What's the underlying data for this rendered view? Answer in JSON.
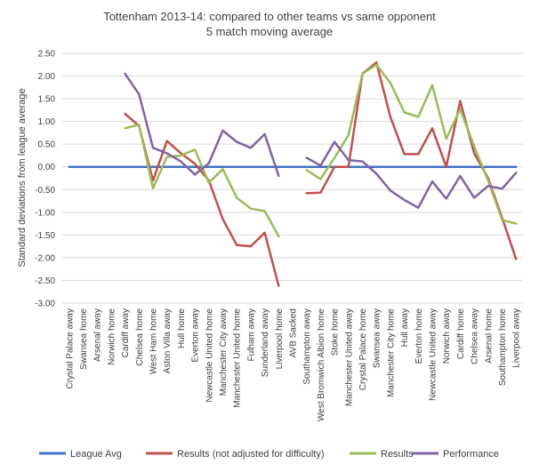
{
  "chart_data": {
    "type": "line",
    "title_line1": "Tottenham 2013-14: compared to other teams vs same opponent",
    "title_line2": "5 match moving average",
    "ylabel": "Standard deviations from league average",
    "xlabel": "",
    "ylim": [
      -3.0,
      2.5
    ],
    "yticks": [
      "2.50",
      "2.00",
      "1.50",
      "1.00",
      "0.50",
      "0.00",
      "-0.50",
      "-1.00",
      "-1.50",
      "-2.00",
      "-2.50",
      "-3.00"
    ],
    "ytick_values": [
      2.5,
      2.0,
      1.5,
      1.0,
      0.5,
      0.0,
      -0.5,
      -1.0,
      -1.5,
      -2.0,
      -2.5,
      -3.0
    ],
    "grid": "horizontal",
    "legend_position": "bottom",
    "categories": [
      "Crystal Palace away",
      "Swansea home",
      "Arsenal away",
      "Norwich home",
      "Cardiff away",
      "Chelsea home",
      "West Ham home",
      "Aston Villa away",
      "Hull home",
      "Everton away",
      "Newcastle United home",
      "Manchester City away",
      "Manchester United home",
      "Fulham away",
      "Sunderland away",
      "Liverpool home",
      "AVB Sacked",
      "Southampton away",
      "West Bromwich Albion home",
      "Stoke home",
      "Manchester United away",
      "Crystal Palace home",
      "Swansea away",
      "Manchester City home",
      "Hull away",
      "Everton home",
      "Newcastle United away",
      "Norwich away",
      "Cardiff home",
      "Chelsea away",
      "Arsenal home",
      "Southampton home",
      "Liverpool away"
    ],
    "series": [
      {
        "name": "League Avg",
        "color": "#4472c4",
        "values": [
          0,
          0,
          0,
          0,
          0,
          0,
          0,
          0,
          0,
          0,
          0,
          0,
          0,
          0,
          0,
          0,
          0,
          0,
          0,
          0,
          0,
          0,
          0,
          0,
          0,
          0,
          0,
          0,
          0,
          0,
          0,
          0,
          0
        ]
      },
      {
        "name": "Results (not adjusted for difficulty)",
        "color": "#c0504d",
        "values": [
          null,
          null,
          null,
          null,
          1.17,
          0.9,
          -0.3,
          0.57,
          0.3,
          0.07,
          -0.3,
          -1.15,
          -1.72,
          -1.75,
          -1.45,
          -2.62,
          null,
          -0.58,
          -0.57,
          0.0,
          0.0,
          2.05,
          2.3,
          1.1,
          0.28,
          0.28,
          0.85,
          0.0,
          1.45,
          0.3,
          -0.25,
          -1.12,
          -2.03
        ]
      },
      {
        "name": "Results",
        "color": "#9bbb59",
        "values": [
          null,
          null,
          null,
          null,
          0.85,
          0.93,
          -0.47,
          0.22,
          0.25,
          0.38,
          -0.35,
          -0.05,
          -0.68,
          -0.92,
          -0.97,
          -1.53,
          null,
          -0.07,
          -0.27,
          0.2,
          0.7,
          2.05,
          2.25,
          1.85,
          1.2,
          1.1,
          1.8,
          0.62,
          1.27,
          0.45,
          -0.3,
          -1.17,
          -1.25
        ]
      },
      {
        "name": "Performance",
        "color": "#8064a2",
        "values": [
          null,
          null,
          null,
          null,
          2.05,
          1.6,
          0.42,
          0.3,
          0.12,
          -0.17,
          0.08,
          0.8,
          0.55,
          0.42,
          0.72,
          -0.2,
          null,
          0.2,
          0.03,
          0.55,
          0.15,
          0.12,
          -0.15,
          -0.52,
          -0.73,
          -0.9,
          -0.32,
          -0.7,
          -0.2,
          -0.68,
          -0.42,
          -0.48,
          -0.13
        ]
      }
    ]
  }
}
